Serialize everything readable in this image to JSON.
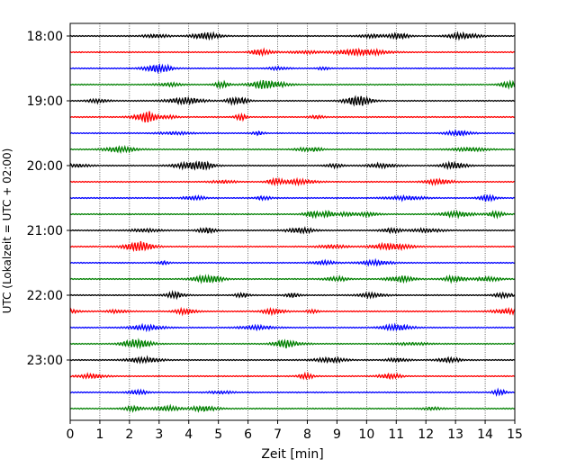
{
  "chart_data": {
    "type": "line",
    "title": "",
    "xlabel": "Zeit  [min]",
    "ylabel": "UTC (Lokalzeit = UTC + 02:00)",
    "xlim": [
      0,
      15
    ],
    "x_ticks": [
      "0",
      "1",
      "2",
      "3",
      "4",
      "5",
      "6",
      "7",
      "8",
      "9",
      "10",
      "11",
      "12",
      "13",
      "14",
      "15"
    ],
    "y_tick_labels": [
      "18:00",
      "19:00",
      "20:00",
      "21:00",
      "22:00",
      "23:00"
    ],
    "grid": "vertical dotted",
    "minutes_per_line": 15,
    "line_colors_cycle": [
      "#000000",
      "#ff0000",
      "#0000ff",
      "#008000"
    ],
    "rows": [
      {
        "start": "18:00"
      },
      {
        "start": "18:15"
      },
      {
        "start": "18:30"
      },
      {
        "start": "18:45"
      },
      {
        "start": "19:00"
      },
      {
        "start": "19:15"
      },
      {
        "start": "19:30"
      },
      {
        "start": "19:45"
      },
      {
        "start": "20:00"
      },
      {
        "start": "20:15"
      },
      {
        "start": "20:30"
      },
      {
        "start": "20:45"
      },
      {
        "start": "21:00"
      },
      {
        "start": "21:15"
      },
      {
        "start": "21:30"
      },
      {
        "start": "21:45"
      },
      {
        "start": "22:00"
      },
      {
        "start": "22:15"
      },
      {
        "start": "22:30"
      },
      {
        "start": "22:45"
      },
      {
        "start": "23:00"
      },
      {
        "start": "23:15"
      },
      {
        "start": "23:30"
      },
      {
        "start": "23:45"
      }
    ]
  }
}
